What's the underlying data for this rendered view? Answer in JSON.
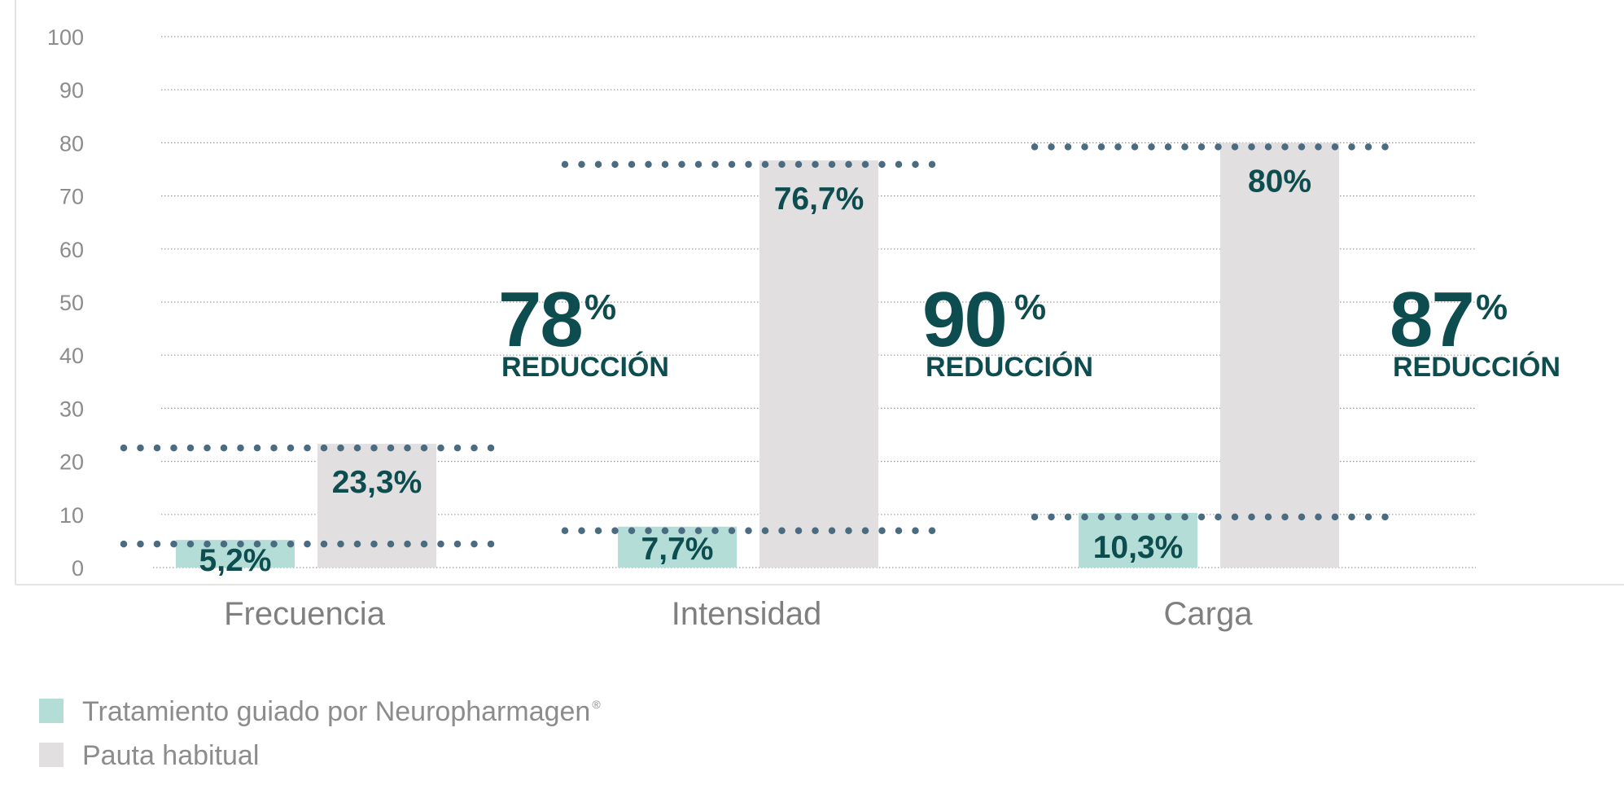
{
  "chart_data": {
    "type": "bar",
    "categories": [
      "Frecuencia",
      "Intensidad",
      "Carga"
    ],
    "series": [
      {
        "name": "Tratamiento guiado por Neuropharmagen",
        "values": [
          5.2,
          7.7,
          10.3
        ],
        "labels": [
          "5,2%",
          "7,7%",
          "10,3%"
        ],
        "color": "#b3ddd6"
      },
      {
        "name": "Pauta habitual",
        "values": [
          23.3,
          76.7,
          80
        ],
        "labels": [
          "23,3%",
          "76,7%",
          "80%"
        ],
        "color": "#e1dfdf"
      }
    ],
    "reductions": [
      {
        "value": "78",
        "unit": "%",
        "label": "REDUCCIÓN"
      },
      {
        "value": "90",
        "unit": "%",
        "label": "REDUCCIÓN"
      },
      {
        "value": "87",
        "unit": "%",
        "label": "REDUCCIÓN"
      }
    ],
    "ylim": [
      0,
      100
    ],
    "yticks": [
      0,
      10,
      20,
      30,
      40,
      50,
      60,
      70,
      80,
      90,
      100
    ],
    "grid": true,
    "legend_position": "bottom-left",
    "legend_superscript": "®",
    "title": "",
    "xlabel": "",
    "ylabel": ""
  },
  "colors": {
    "accent": "#0d4c4f",
    "dotted_line": "#4a6b80",
    "gridline": "#9a9a9a",
    "axis_text": "#8c8c8c"
  }
}
